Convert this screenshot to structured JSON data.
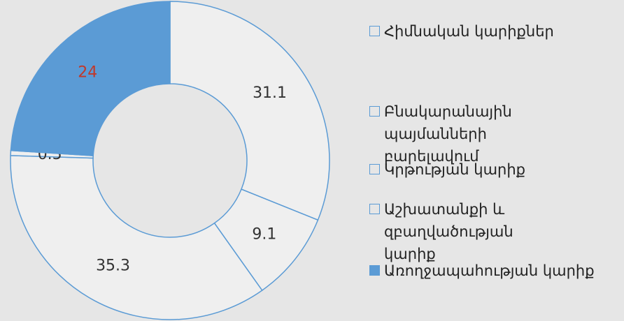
{
  "chart_data": {
    "type": "donut",
    "categories": [
      "Հիմնական կարիքներ",
      "Բնակարանային պայմանների բարելավում",
      "Կրթության կարիք",
      "Աշխատանքի և զբաղվածության կարիք",
      "Առողջապահության կարիք"
    ],
    "values": [
      31.1,
      9.1,
      35.3,
      0.5,
      24
    ],
    "colors": [
      "#efefef",
      "#efefef",
      "#efefef",
      "#efefef",
      "#5b9bd5"
    ],
    "edge_color": "#5b9bd5",
    "label_colors": [
      "#333333",
      "#333333",
      "#333333",
      "#333333",
      "#c0392b"
    ]
  }
}
